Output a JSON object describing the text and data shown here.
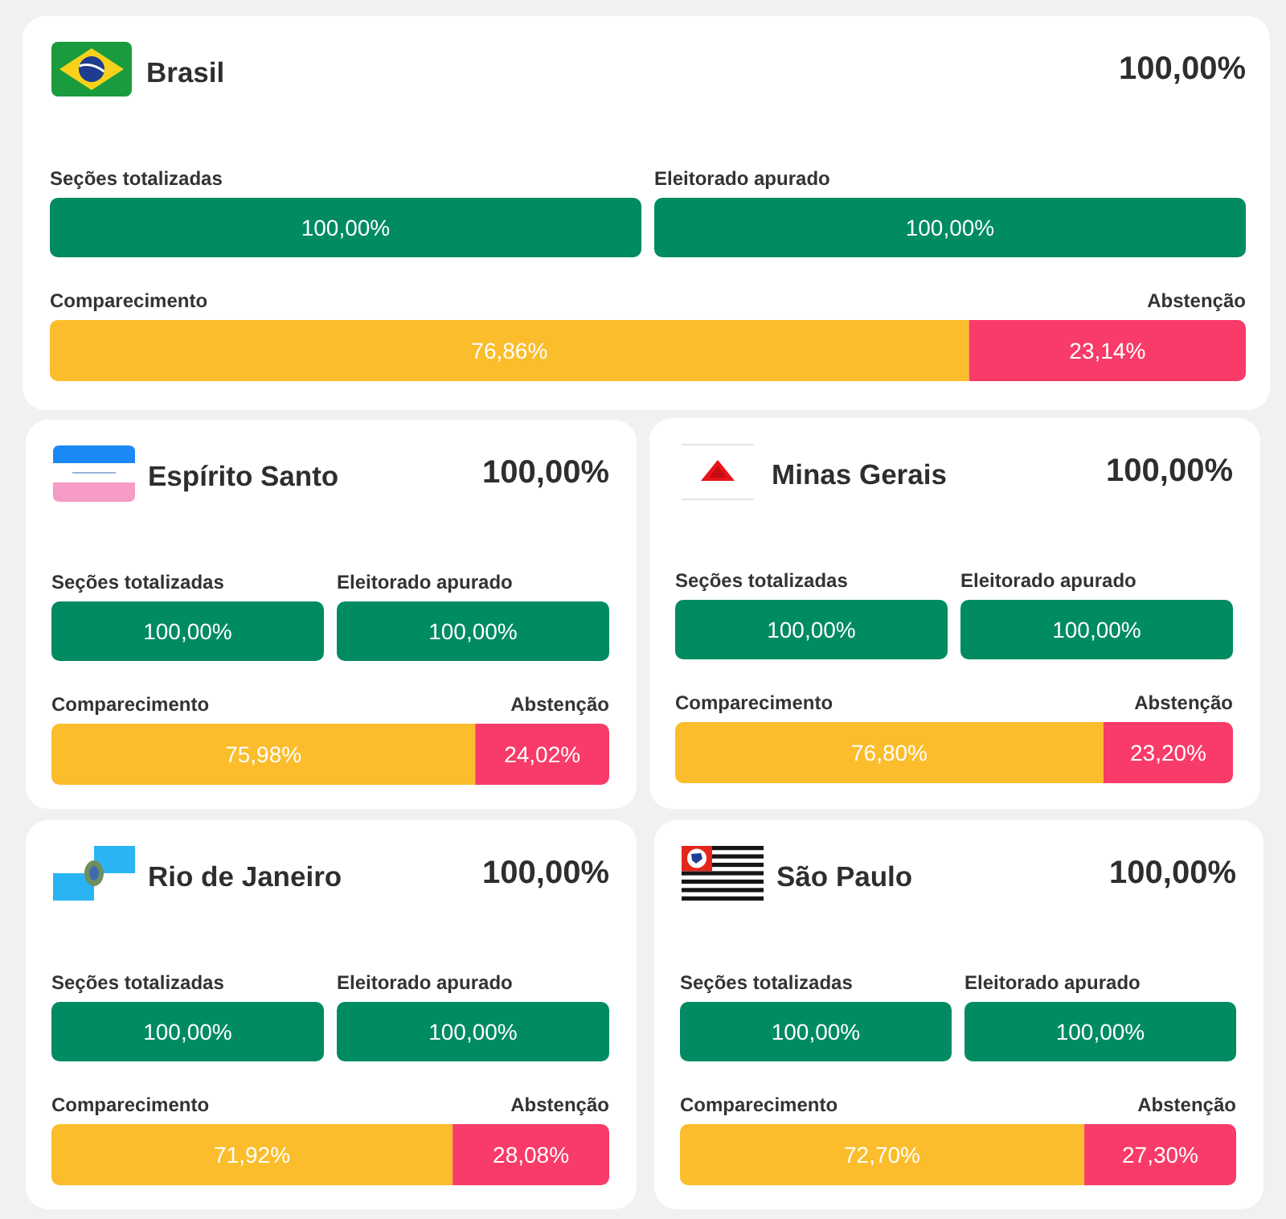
{
  "chart_data": [
    {
      "type": "bar",
      "orientation": "horizontal",
      "title": "Brasil",
      "annotations": [
        "100,00%"
      ],
      "categories": [
        "Seções totalizadas"
      ],
      "values": [
        100
      ],
      "value_labels": [
        "100,00%"
      ],
      "color": "#008b62",
      "tick_labels": "y"
    },
    {
      "type": "bar",
      "orientation": "horizontal",
      "categories": [
        "Eleitorado apurado"
      ],
      "values": [
        100
      ],
      "value_labels": [
        "100,00%"
      ],
      "color": "#008b62",
      "tick_labels": "y"
    },
    {
      "type": "bar",
      "orientation": "horizontal",
      "stacked": true,
      "categories": [
        null
      ],
      "series": [
        {
          "name": "Comparecimento",
          "color": "#fbbd2c",
          "values": [
            76.86
          ],
          "value_labels": [
            "76,86%"
          ]
        },
        {
          "name": "Abstenção",
          "color": "#f83b68",
          "values": [
            23.14
          ],
          "value_labels": [
            "23,14%"
          ]
        }
      ],
      "xlim": [
        0,
        100
      ],
      "tick_labels": false
    },
    {
      "type": "bar",
      "orientation": "horizontal",
      "title": "Espírito Santo",
      "annotations": [
        "100,00%"
      ],
      "categories": [
        "Seções totalizadas"
      ],
      "values": [
        100
      ],
      "value_labels": [
        "100,00%"
      ],
      "color": "#008b62",
      "tick_labels": "y"
    },
    {
      "type": "bar",
      "orientation": "horizontal",
      "categories": [
        "Eleitorado apurado"
      ],
      "values": [
        100
      ],
      "value_labels": [
        "100,00%"
      ],
      "color": "#008b62",
      "tick_labels": "y"
    },
    {
      "type": "bar",
      "orientation": "horizontal",
      "stacked": true,
      "categories": [
        null
      ],
      "series": [
        {
          "name": "Comparecimento",
          "color": "#fbbd2c",
          "values": [
            75.98
          ],
          "value_labels": [
            "75,98%"
          ]
        },
        {
          "name": "Abstenção",
          "color": "#f83b68",
          "values": [
            24.02
          ],
          "value_labels": [
            "24,02%"
          ]
        }
      ],
      "xlim": [
        0,
        100
      ],
      "tick_labels": false
    },
    {
      "type": "bar",
      "orientation": "horizontal",
      "title": "Minas Gerais",
      "annotations": [
        "100,00%"
      ],
      "categories": [
        "Seções totalizadas"
      ],
      "values": [
        100
      ],
      "value_labels": [
        "100,00%"
      ],
      "color": "#008b62",
      "tick_labels": "y"
    },
    {
      "type": "bar",
      "orientation": "horizontal",
      "categories": [
        "Eleitorado apurado"
      ],
      "values": [
        100
      ],
      "value_labels": [
        "100,00%"
      ],
      "color": "#008b62",
      "tick_labels": "y"
    },
    {
      "type": "bar",
      "orientation": "horizontal",
      "stacked": true,
      "categories": [
        null
      ],
      "series": [
        {
          "name": "Comparecimento",
          "color": "#fbbd2c",
          "values": [
            76.8
          ],
          "value_labels": [
            "76,80%"
          ]
        },
        {
          "name": "Abstenção",
          "color": "#f83b68",
          "values": [
            23.2
          ],
          "value_labels": [
            "23,20%"
          ]
        }
      ],
      "xlim": [
        0,
        100
      ],
      "tick_labels": false
    },
    {
      "type": "bar",
      "orientation": "horizontal",
      "title": "Rio de Janeiro",
      "annotations": [
        "100,00%"
      ],
      "categories": [
        "Seções totalizadas"
      ],
      "values": [
        100
      ],
      "value_labels": [
        "100,00%"
      ],
      "color": "#008b62",
      "tick_labels": "y"
    },
    {
      "type": "bar",
      "orientation": "horizontal",
      "categories": [
        "Eleitorado apurado"
      ],
      "values": [
        100
      ],
      "value_labels": [
        "100,00%"
      ],
      "color": "#008b62",
      "tick_labels": "y"
    },
    {
      "type": "bar",
      "orientation": "horizontal",
      "stacked": true,
      "categories": [
        null
      ],
      "series": [
        {
          "name": "Comparecimento",
          "color": "#fbbd2c",
          "values": [
            71.92
          ],
          "value_labels": [
            "71,92%"
          ]
        },
        {
          "name": "Abstenção",
          "color": "#f83b68",
          "values": [
            28.08
          ],
          "value_labels": [
            "28,08%"
          ]
        }
      ],
      "xlim": [
        0,
        100
      ],
      "tick_labels": false
    },
    {
      "type": "bar",
      "orientation": "horizontal",
      "title": "São Paulo",
      "annotations": [
        "100,00%"
      ],
      "categories": [
        "Seções totalizadas"
      ],
      "values": [
        100
      ],
      "value_labels": [
        "100,00%"
      ],
      "color": "#008b62",
      "tick_labels": "y"
    },
    {
      "type": "bar",
      "orientation": "horizontal",
      "categories": [
        "Eleitorado apurado"
      ],
      "values": [
        100
      ],
      "value_labels": [
        "100,00%"
      ],
      "color": "#008b62",
      "tick_labels": "y"
    },
    {
      "type": "bar",
      "orientation": "horizontal",
      "stacked": true,
      "categories": [
        null
      ],
      "series": [
        {
          "name": "Comparecimento",
          "color": "#fbbd2c",
          "values": [
            72.7
          ],
          "value_labels": [
            "72,70%"
          ]
        },
        {
          "name": "Abstenção",
          "color": "#f83b68",
          "values": [
            27.3
          ],
          "value_labels": [
            "27,30%"
          ]
        }
      ],
      "xlim": [
        0,
        100
      ],
      "tick_labels": false
    }
  ]
}
